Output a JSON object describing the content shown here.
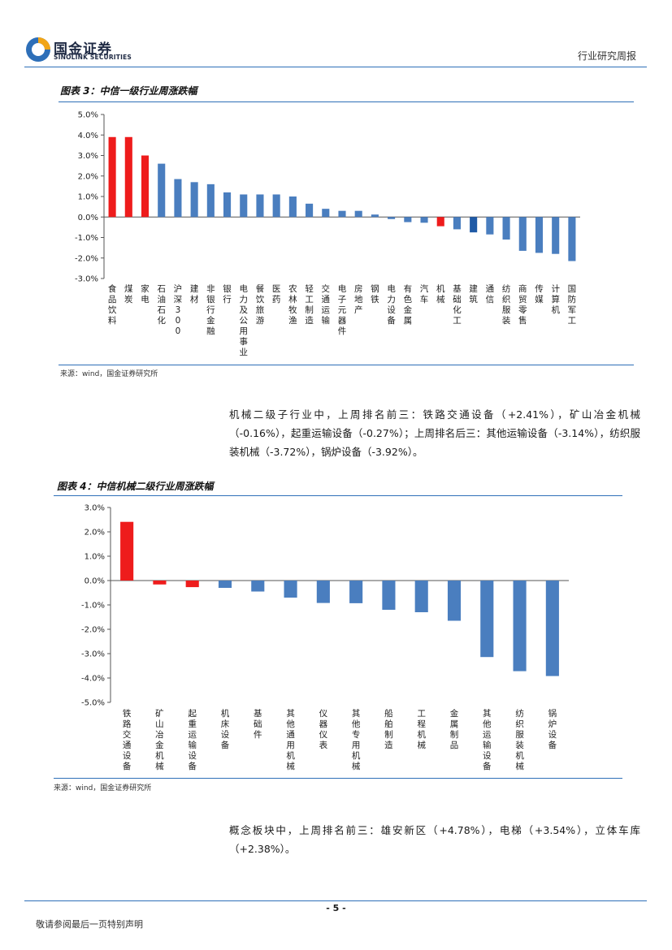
{
  "header": {
    "logo_cn": "国金证券",
    "logo_en": "SINOLINK SECURITIES",
    "report_type": "行业研究周报"
  },
  "figure3": {
    "title": "图表 3：中信一级行业周涨跌幅",
    "source": "来源：wind，国金证券研究所"
  },
  "paragraph1": "机械二级子行业中，上周排名前三：铁路交通设备（+2.41%），矿山冶金机械（-0.16%），起重运输设备（-0.27%）；上周排名后三：其他运输设备（-3.14%），纺织服装机械（-3.72%），锅炉设备（-3.92%）。",
  "figure4": {
    "title": "图表 4：中信机械二级行业周涨跌幅",
    "source": "来源：wind，国金证券研究所"
  },
  "paragraph2": "概念板块中，上周排名前三：雄安新区（+4.78%），电梯（+3.54%），立体车库（+2.38%）。",
  "footer": {
    "page_number": "- 5 -",
    "disclaimer": "敬请参阅最后一页特别声明"
  },
  "colors": {
    "accent_blue": "#4a7ebf",
    "highlight_red": "#ee1c1c",
    "highlight_blue": "#1f5aa6",
    "rule_blue": "#2e6fb8"
  },
  "chart_data": [
    {
      "type": "bar",
      "title": "图表 3：中信一级行业周涨跌幅",
      "categories": [
        "食品饮料",
        "煤炭",
        "家电",
        "石油石化",
        "沪深300",
        "建材",
        "非银行金融",
        "银行",
        "电力及公用事业",
        "餐饮旅游",
        "医药",
        "农林牧渔",
        "轻工制造",
        "交通运输",
        "电子元器件",
        "房地产",
        "钢铁",
        "电力设备",
        "有色金属",
        "汽车",
        "机械",
        "基础化工",
        "建筑",
        "通信",
        "纺织服装",
        "商贸零售",
        "传媒",
        "计算机",
        "国防军工"
      ],
      "values": [
        3.9,
        3.9,
        3.0,
        2.6,
        1.85,
        1.7,
        1.6,
        1.2,
        1.1,
        1.1,
        1.1,
        1.0,
        0.65,
        0.4,
        0.3,
        0.3,
        0.12,
        -0.1,
        -0.25,
        -0.28,
        -0.45,
        -0.6,
        -0.75,
        -0.85,
        -1.1,
        -1.65,
        -1.75,
        -1.8,
        -2.15
      ],
      "bar_colors": [
        "#ee1c1c",
        "#ee1c1c",
        "#ee1c1c",
        "#4a7ebf",
        "#4a7ebf",
        "#4a7ebf",
        "#4a7ebf",
        "#4a7ebf",
        "#4a7ebf",
        "#4a7ebf",
        "#4a7ebf",
        "#4a7ebf",
        "#4a7ebf",
        "#4a7ebf",
        "#4a7ebf",
        "#4a7ebf",
        "#4a7ebf",
        "#4a7ebf",
        "#4a7ebf",
        "#4a7ebf",
        "#ee1c1c",
        "#4a7ebf",
        "#1f5aa6",
        "#4a7ebf",
        "#4a7ebf",
        "#4a7ebf",
        "#4a7ebf",
        "#4a7ebf",
        "#4a7ebf"
      ],
      "ylim": [
        -3.0,
        5.0
      ],
      "yticks": [
        "5.0%",
        "4.0%",
        "3.0%",
        "2.0%",
        "1.0%",
        "0.0%",
        "-1.0%",
        "-2.0%",
        "-3.0%"
      ],
      "xlabel": "",
      "ylabel": "",
      "legend": "none"
    },
    {
      "type": "bar",
      "title": "图表 4：中信机械二级行业周涨跌幅",
      "categories": [
        "铁路交通设备",
        "矿山冶金机械",
        "起重运输设备",
        "机床设备",
        "基础件",
        "其他通用机械",
        "仪器仪表",
        "其他专用机械",
        "船舶制造",
        "工程机械",
        "金属制品",
        "其他运输设备",
        "纺织服装机械",
        "锅炉设备"
      ],
      "values": [
        2.41,
        -0.16,
        -0.27,
        -0.3,
        -0.45,
        -0.7,
        -0.92,
        -0.93,
        -1.2,
        -1.3,
        -1.65,
        -3.14,
        -3.72,
        -3.92
      ],
      "bar_colors": [
        "#ee1c1c",
        "#ee1c1c",
        "#ee1c1c",
        "#4a7ebf",
        "#4a7ebf",
        "#4a7ebf",
        "#4a7ebf",
        "#4a7ebf",
        "#4a7ebf",
        "#4a7ebf",
        "#4a7ebf",
        "#4a7ebf",
        "#4a7ebf",
        "#4a7ebf"
      ],
      "ylim": [
        -5.0,
        3.0
      ],
      "yticks": [
        "3.0%",
        "2.0%",
        "1.0%",
        "0.0%",
        "-1.0%",
        "-2.0%",
        "-3.0%",
        "-4.0%",
        "-5.0%"
      ],
      "xlabel": "",
      "ylabel": "",
      "legend": "none"
    }
  ]
}
